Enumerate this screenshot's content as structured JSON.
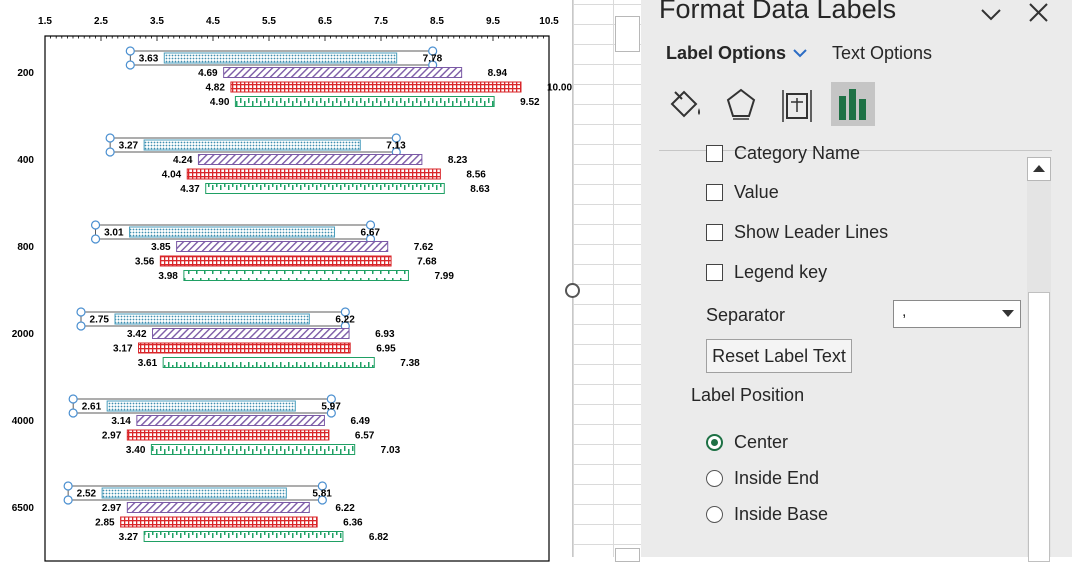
{
  "chart_data": {
    "type": "bar",
    "x_ticks": [
      "1.5",
      "2.5",
      "3.5",
      "4.5",
      "5.5",
      "6.5",
      "7.5",
      "8.5",
      "9.5",
      "10.5"
    ],
    "xlim": [
      1.5,
      10.5
    ],
    "categories": [
      "200",
      "400",
      "800",
      "2000",
      "4000",
      "6500"
    ],
    "series": [
      {
        "color": "#4a9ebd",
        "pattern": "dots",
        "values": [
          [
            3.63,
            7.78
          ],
          [
            3.27,
            7.13
          ],
          [
            3.01,
            6.67
          ],
          [
            2.75,
            6.22
          ],
          [
            2.61,
            5.97
          ],
          [
            2.52,
            5.81
          ]
        ],
        "low_labels": [
          "3.63",
          "3.27",
          "3.01",
          "2.75",
          "2.61",
          "2.52"
        ],
        "high_labels": [
          "7.78",
          "7.13",
          "6.67",
          "6.22",
          "5.97",
          "5.81"
        ]
      },
      {
        "color": "#7b5aa6",
        "pattern": "diagonal",
        "values": [
          [
            4.69,
            8.94
          ],
          [
            4.24,
            8.23
          ],
          [
            3.85,
            7.62
          ],
          [
            3.42,
            6.93
          ],
          [
            3.14,
            6.49
          ],
          [
            2.97,
            6.22
          ]
        ],
        "low_labels": [
          "4.69",
          "4.24",
          "3.85",
          "3.42",
          "3.14",
          "2.97"
        ],
        "high_labels": [
          "8.94",
          "8.23",
          "7.62",
          "6.93",
          "6.49",
          "6.22"
        ]
      },
      {
        "color": "#d9262a",
        "pattern": "grid",
        "values": [
          [
            4.82,
            10.0
          ],
          [
            4.04,
            8.56
          ],
          [
            3.56,
            7.68
          ],
          [
            3.17,
            6.95
          ],
          [
            2.97,
            6.57
          ],
          [
            2.85,
            6.36
          ]
        ],
        "low_labels": [
          "4.82",
          "4.04",
          "3.56",
          "3.17",
          "2.97",
          "2.85"
        ],
        "high_labels": [
          "10.00",
          "8.56",
          "7.68",
          "6.95",
          "6.57",
          "6.36"
        ]
      },
      {
        "color": "#1fa064",
        "pattern": "ticks",
        "values": [
          [
            4.9,
            9.52
          ],
          [
            4.37,
            8.63
          ],
          [
            3.98,
            7.99
          ],
          [
            3.61,
            7.38
          ],
          [
            3.4,
            7.03
          ],
          [
            3.27,
            6.82
          ]
        ],
        "low_labels": [
          "4.90",
          "4.37",
          "3.98",
          "3.61",
          "3.40",
          "3.27"
        ],
        "high_labels": [
          "9.52",
          "8.63",
          "7.99",
          "7.38",
          "7.03",
          "6.82"
        ]
      }
    ],
    "selected_series": 0
  },
  "pane": {
    "title": "Format Data Labels",
    "tabs": {
      "label_options": "Label Options",
      "text_options": "Text Options"
    },
    "checkboxes": {
      "category_name": "Category Name",
      "value": "Value",
      "show_leader_lines": "Show Leader Lines",
      "legend_key": "Legend key"
    },
    "separator": {
      "label": "Separator",
      "value": ","
    },
    "reset_button": "Reset Label Text",
    "label_position": {
      "heading": "Label Position",
      "options": [
        "Center",
        "Inside End",
        "Inside Base"
      ],
      "selected": "Center"
    }
  }
}
